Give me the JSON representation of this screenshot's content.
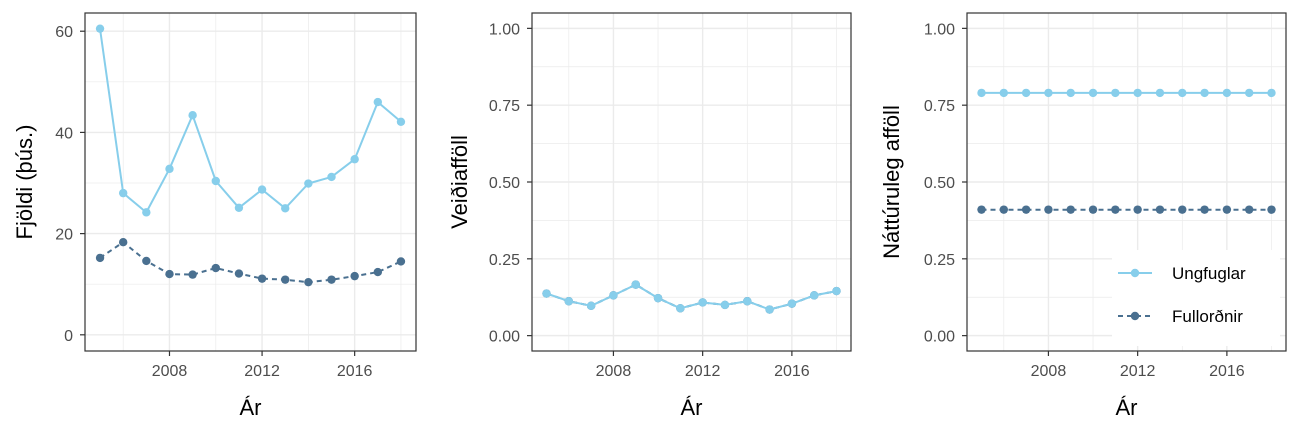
{
  "chart_data": [
    {
      "type": "line",
      "panel": "population",
      "x": [
        2005,
        2006,
        2007,
        2008,
        2009,
        2010,
        2011,
        2012,
        2013,
        2014,
        2015,
        2016,
        2017,
        2018
      ],
      "series": [
        {
          "name": "Ungfuglar",
          "values": [
            60.5,
            28.0,
            24.2,
            32.8,
            43.4,
            30.4,
            25.1,
            28.7,
            25.0,
            29.9,
            31.2,
            34.7,
            46.0,
            42.1
          ],
          "color": "#87ceeb",
          "line": "solid"
        },
        {
          "name": "Fullorðnir",
          "values": [
            15.2,
            18.3,
            14.6,
            12.0,
            11.9,
            13.2,
            12.1,
            11.1,
            10.9,
            10.4,
            10.9,
            11.6,
            12.4,
            14.5
          ],
          "color": "#4a7090",
          "line": "dashed"
        }
      ],
      "xlabel": "Ár",
      "ylabel": "Fjöldi (þús.)",
      "xlim": [
        2004.35,
        2018.65
      ],
      "ylim": [
        -3.2,
        63.6
      ],
      "xticks": [
        2008,
        2012,
        2016
      ],
      "xtick_labels": [
        "2008",
        "2012",
        "2016"
      ],
      "yticks": [
        0,
        20,
        40,
        60
      ],
      "ytick_labels": [
        "0",
        "20",
        "40",
        "60"
      ],
      "grid": true
    },
    {
      "type": "line",
      "panel": "hunting-mortality",
      "x": [
        2005,
        2006,
        2007,
        2008,
        2009,
        2010,
        2011,
        2012,
        2013,
        2014,
        2015,
        2016,
        2017,
        2018
      ],
      "series": [
        {
          "name": "Ungfuglar",
          "values": [
            0.137,
            0.112,
            0.097,
            0.131,
            0.166,
            0.122,
            0.089,
            0.108,
            0.1,
            0.112,
            0.085,
            0.104,
            0.131,
            0.145
          ],
          "color": "#87ceeb",
          "line": "solid"
        },
        {
          "name": "Fullorðnir",
          "values": [
            0.137,
            0.112,
            0.097,
            0.131,
            0.166,
            0.122,
            0.089,
            0.108,
            0.1,
            0.112,
            0.085,
            0.104,
            0.131,
            0.145
          ],
          "color": "#4a7090",
          "line": "dashed"
        }
      ],
      "xlabel": "Ár",
      "ylabel": "Veiðiafföll",
      "xlim": [
        2004.35,
        2018.65
      ],
      "ylim": [
        -0.05,
        1.05
      ],
      "xticks": [
        2008,
        2012,
        2016
      ],
      "xtick_labels": [
        "2008",
        "2012",
        "2016"
      ],
      "yticks": [
        0,
        0.25,
        0.5,
        0.75,
        1
      ],
      "ytick_labels": [
        "0.00",
        "0.25",
        "0.50",
        "0.75",
        "1.00"
      ],
      "grid": true
    },
    {
      "type": "line",
      "panel": "natural-mortality",
      "x": [
        2005,
        2006,
        2007,
        2008,
        2009,
        2010,
        2011,
        2012,
        2013,
        2014,
        2015,
        2016,
        2017,
        2018
      ],
      "series": [
        {
          "name": "Ungfuglar",
          "values": [
            0.79,
            0.79,
            0.79,
            0.79,
            0.79,
            0.79,
            0.79,
            0.79,
            0.79,
            0.79,
            0.79,
            0.79,
            0.79,
            0.79
          ],
          "color": "#87ceeb",
          "line": "solid"
        },
        {
          "name": "Fullorðnir",
          "values": [
            0.41,
            0.41,
            0.41,
            0.41,
            0.41,
            0.41,
            0.41,
            0.41,
            0.41,
            0.41,
            0.41,
            0.41,
            0.41,
            0.41
          ],
          "color": "#4a7090",
          "line": "dashed"
        }
      ],
      "xlabel": "Ár",
      "ylabel": "Náttúruleg afföll",
      "xlim": [
        2004.35,
        2018.65
      ],
      "ylim": [
        -0.05,
        1.05
      ],
      "xticks": [
        2008,
        2012,
        2016
      ],
      "xtick_labels": [
        "2008",
        "2012",
        "2016"
      ],
      "yticks": [
        0,
        0.25,
        0.5,
        0.75,
        1
      ],
      "ytick_labels": [
        "0.00",
        "0.25",
        "0.50",
        "0.75",
        "1.00"
      ],
      "grid": true,
      "legend": {
        "position": "bottom-right",
        "entries": [
          "Ungfuglar",
          "Fullorðnir"
        ]
      }
    }
  ]
}
